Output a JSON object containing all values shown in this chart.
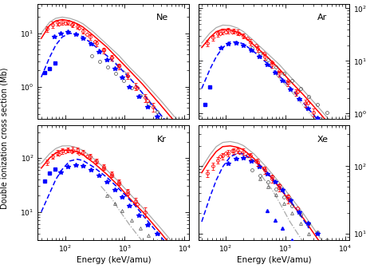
{
  "panels": [
    "Ne",
    "Ar",
    "Kr",
    "Xe"
  ],
  "background_color": "#ffffff",
  "xlim": [
    35,
    12000
  ],
  "ylims": {
    "Ne": [
      0.25,
      35
    ],
    "Ar": [
      0.8,
      120
    ],
    "Kr": [
      3,
      400
    ],
    "Xe": [
      8,
      400
    ]
  },
  "xlabel": "Energy (keV/amu)",
  "ylabel": "Double ionization cross section (Mb)",
  "curves": {
    "Ne": {
      "red_solid": {
        "x": [
          40,
          55,
          70,
          90,
          120,
          160,
          200,
          300,
          500,
          800,
          1200,
          2000,
          4000,
          8000,
          12000
        ],
        "y": [
          8,
          14,
          17,
          18,
          17,
          15,
          13,
          9,
          5.5,
          3.2,
          2.0,
          1.1,
          0.45,
          0.18,
          0.09
        ]
      },
      "gray_solid": {
        "x": [
          40,
          55,
          70,
          90,
          120,
          160,
          200,
          300,
          500,
          800,
          1200,
          2000,
          4000,
          8000,
          12000
        ],
        "y": [
          10,
          16,
          19,
          20,
          19,
          17,
          15,
          10.5,
          6.2,
          3.8,
          2.3,
          1.3,
          0.55,
          0.22,
          0.11
        ]
      },
      "blue_dashed": {
        "x": [
          40,
          55,
          70,
          90,
          120,
          160,
          200,
          300,
          500,
          700,
          1000,
          1500,
          2500,
          5000,
          8000
        ],
        "y": [
          1.5,
          3.5,
          6,
          8.5,
          10,
          9.5,
          8.5,
          6,
          3.8,
          2.7,
          1.8,
          1.1,
          0.55,
          0.22,
          0.12
        ]
      },
      "gray_dashdot": {
        "x": [
          700,
          1000,
          1500,
          2500,
          5000,
          8000,
          12000
        ],
        "y": [
          2.8,
          1.9,
          1.1,
          0.55,
          0.22,
          0.1,
          0.055
        ]
      }
    },
    "Ar": {
      "red_solid": {
        "x": [
          40,
          55,
          70,
          90,
          120,
          160,
          200,
          300,
          500,
          800,
          1200,
          2000,
          4000,
          8000,
          12000
        ],
        "y": [
          18,
          28,
          36,
          40,
          39,
          35,
          30,
          20,
          12,
          7,
          4.2,
          2.3,
          0.95,
          0.38,
          0.19
        ]
      },
      "gray_solid": {
        "x": [
          40,
          55,
          70,
          90,
          120,
          160,
          200,
          300,
          500,
          800,
          1200,
          2000,
          4000,
          8000,
          12000
        ],
        "y": [
          22,
          34,
          43,
          48,
          47,
          42,
          36,
          24,
          14,
          8.5,
          5.1,
          2.8,
          1.15,
          0.46,
          0.23
        ]
      },
      "blue_dashed": {
        "x": [
          40,
          55,
          70,
          90,
          120,
          160,
          200,
          300,
          500,
          700,
          1000,
          1500,
          2500,
          5000,
          8000
        ],
        "y": [
          3,
          7,
          12,
          18,
          23,
          23,
          21,
          15,
          9,
          6,
          4,
          2.4,
          1.2,
          0.48,
          0.25
        ]
      },
      "gray_dashdot": {
        "x": [
          700,
          1000,
          1500,
          2500,
          5000,
          8000,
          12000
        ],
        "y": [
          5.5,
          3.6,
          2.1,
          1.05,
          0.42,
          0.19,
          0.1
        ]
      }
    },
    "Kr": {
      "red_solid": {
        "x": [
          40,
          55,
          70,
          90,
          120,
          160,
          200,
          300,
          500,
          800,
          1200,
          2000,
          4000,
          8000
        ],
        "y": [
          65,
          100,
          125,
          140,
          140,
          130,
          115,
          82,
          50,
          30,
          18,
          10,
          4.1,
          1.6
        ]
      },
      "gray_solid": {
        "x": [
          40,
          55,
          70,
          90,
          120,
          160,
          200,
          300,
          500,
          800,
          1200,
          2000,
          4000,
          8000
        ],
        "y": [
          80,
          120,
          150,
          168,
          168,
          155,
          138,
          98,
          60,
          36,
          22,
          12,
          5,
          2
        ]
      },
      "blue_dashed": {
        "x": [
          40,
          55,
          70,
          90,
          120,
          160,
          200,
          300,
          500,
          700,
          1000,
          1500,
          2500,
          5000
        ],
        "y": [
          10,
          22,
          40,
          62,
          88,
          95,
          90,
          68,
          44,
          31,
          21,
          13,
          6.5,
          2.6
        ]
      },
      "gray_dashdot": {
        "x": [
          400,
          600,
          800,
          1200,
          2000,
          4000,
          8000
        ],
        "y": [
          30,
          18,
          11,
          5.8,
          2.8,
          1.1,
          0.45
        ]
      }
    },
    "Xe": {
      "red_solid": {
        "x": [
          40,
          55,
          70,
          90,
          120,
          160,
          200,
          300,
          500,
          800,
          1200,
          2000,
          4000,
          8000
        ],
        "y": [
          80,
          125,
          165,
          195,
          200,
          190,
          175,
          130,
          80,
          48,
          30,
          17,
          7,
          2.8
        ]
      },
      "gray_solid": {
        "x": [
          40,
          55,
          70,
          90,
          120,
          160,
          200,
          300,
          500,
          800,
          1200,
          2000,
          4000,
          8000
        ],
        "y": [
          95,
          148,
          195,
          225,
          232,
          220,
          202,
          152,
          94,
          57,
          36,
          20,
          8.2,
          3.3
        ]
      },
      "blue_dashed": {
        "x": [
          40,
          55,
          70,
          90,
          120,
          160,
          200,
          300,
          500,
          700,
          1000,
          1500,
          2500
        ],
        "y": [
          15,
          35,
          62,
          98,
          138,
          155,
          152,
          120,
          80,
          57,
          38,
          24,
          12
        ]
      },
      "gray_dashdot": {
        "x": [
          400,
          600,
          800,
          1200,
          2000,
          4000,
          8000
        ],
        "y": [
          72,
          45,
          29,
          15,
          7.5,
          3,
          1.2
        ]
      }
    }
  },
  "data_points": {
    "Ne": {
      "red_open_circles": {
        "x": [
          50,
          62,
          75,
          90,
          110,
          135,
          160,
          200,
          260,
          340,
          450,
          600,
          800,
          1100,
          1500,
          2200,
          3000
        ],
        "y": [
          12,
          14.5,
          16,
          16.5,
          16,
          15,
          13.5,
          11,
          8.5,
          6.5,
          4.8,
          3.5,
          2.4,
          1.6,
          1.0,
          0.62,
          0.42
        ],
        "yerr": [
          1.5,
          1.8,
          2,
          2,
          1.8,
          1.8,
          1.5,
          1.2,
          1,
          0.8,
          0.6,
          0.4,
          0.3,
          0.2,
          0.15,
          0.1,
          0.08
        ]
      },
      "red_open_diamonds": {
        "x": [
          80,
          100,
          130,
          170,
          230,
          320,
          440,
          600,
          800,
          1100,
          1600,
          2400
        ],
        "y": [
          15,
          15.5,
          14.5,
          12.5,
          9.5,
          7,
          5,
          3.5,
          2.5,
          1.6,
          0.95,
          0.55
        ]
      },
      "blue_filled_stars": {
        "x": [
          65,
          85,
          110,
          150,
          200,
          270,
          370,
          500,
          680,
          900,
          1200,
          1700,
          2400,
          3500
        ],
        "y": [
          8.5,
          10,
          10.5,
          9.5,
          8,
          6.2,
          4.5,
          3.2,
          2.2,
          1.5,
          1.0,
          0.65,
          0.42,
          0.28
        ]
      },
      "blue_filled_squares": {
        "x": [
          45,
          55,
          68
        ],
        "y": [
          1.8,
          2.2,
          2.8
        ]
      },
      "open_circles_black": {
        "x": [
          280,
          380,
          520,
          700,
          950,
          1300,
          1800,
          2500,
          3500,
          5000,
          7000
        ],
        "y": [
          3.8,
          3.0,
          2.3,
          1.75,
          1.3,
          0.95,
          0.68,
          0.48,
          0.34,
          0.24,
          0.17
        ]
      }
    },
    "Ar": {
      "red_open_circles": {
        "x": [
          50,
          62,
          75,
          90,
          110,
          135,
          160,
          200,
          260,
          340,
          450,
          600,
          800,
          1100,
          1500,
          2200,
          3000
        ],
        "y": [
          22,
          28,
          33,
          37,
          38,
          37,
          35,
          30,
          23,
          17,
          12,
          8.5,
          5.8,
          3.8,
          2.5,
          1.6,
          1.05
        ],
        "yerr": [
          3,
          3.5,
          4,
          4.5,
          4.5,
          4,
          4,
          3.5,
          3,
          2,
          1.5,
          1,
          0.7,
          0.5,
          0.35,
          0.25,
          0.18
        ]
      },
      "red_open_diamonds": {
        "x": [
          80,
          100,
          130,
          170,
          230,
          320,
          440,
          600,
          800,
          1100,
          1600,
          2400
        ],
        "y": [
          33,
          36,
          36,
          33,
          27,
          20,
          14,
          9.5,
          6.5,
          4.2,
          2.6,
          1.6
        ]
      },
      "blue_filled_stars": {
        "x": [
          85,
          110,
          150,
          200,
          270,
          370,
          500,
          680,
          900,
          1200,
          1700,
          2400,
          3500,
          5000,
          7000
        ],
        "y": [
          18,
          21,
          22,
          20,
          16,
          12,
          8.5,
          6,
          4.2,
          2.9,
          1.9,
          1.25,
          0.82,
          0.54,
          0.36
        ]
      },
      "blue_filled_squares": {
        "x": [
          45,
          55
        ],
        "y": [
          1.5,
          3.2
        ]
      },
      "open_circles_black": {
        "x": [
          280,
          380,
          520,
          700,
          950,
          1300,
          1800,
          2500,
          3500,
          5000,
          7000
        ],
        "y": [
          18,
          14,
          10.5,
          7.8,
          5.8,
          4.2,
          3.0,
          2.1,
          1.5,
          1.05,
          0.75
        ]
      }
    },
    "Kr": {
      "red_open_circles": {
        "x": [
          50,
          62,
          75,
          90,
          110,
          135,
          160,
          200,
          260,
          340,
          450,
          600,
          800,
          1100,
          1500,
          2200
        ],
        "y": [
          85,
          108,
          125,
          136,
          142,
          143,
          140,
          128,
          108,
          88,
          68,
          50,
          36,
          24,
          16,
          10
        ],
        "yerr": [
          10,
          12,
          14,
          15,
          16,
          16,
          16,
          14,
          12,
          10,
          8,
          6,
          4.5,
          3,
          2.5,
          2
        ]
      },
      "red_open_diamonds": {
        "x": [
          80,
          100,
          130,
          170,
          230,
          320,
          440,
          600,
          800,
          1100,
          1600
        ],
        "y": [
          120,
          130,
          132,
          125,
          108,
          85,
          65,
          48,
          34,
          22,
          14
        ]
      },
      "blue_filled_stars": {
        "x": [
          85,
          110,
          150,
          200,
          270,
          370,
          500,
          680,
          900,
          1200,
          1700,
          2400,
          3500
        ],
        "y": [
          55,
          68,
          75,
          72,
          60,
          48,
          36,
          26,
          19,
          13,
          8.5,
          5.8,
          4
        ]
      },
      "blue_filled_squares": {
        "x": [
          45,
          55,
          68
        ],
        "y": [
          38,
          52,
          62
        ]
      },
      "open_triangles_black": {
        "x": [
          500,
          680,
          900,
          1300,
          1800,
          2500,
          3500,
          5000,
          7000
        ],
        "y": [
          20,
          14.5,
          10.5,
          7,
          5,
          3.7,
          2.9,
          2.4,
          2.1
        ]
      }
    },
    "Xe": {
      "red_open_circles": {
        "x": [
          50,
          62,
          75,
          90,
          110,
          135,
          160,
          200,
          260,
          340,
          450,
          600,
          800,
          1100
        ],
        "y": [
          78,
          100,
          122,
          142,
          158,
          168,
          172,
          165,
          142,
          115,
          88,
          65,
          48,
          33
        ],
        "yerr": [
          10,
          12,
          14,
          16,
          18,
          18,
          18,
          18,
          16,
          14,
          11,
          8,
          6,
          5
        ]
      },
      "red_open_diamonds": {
        "x": [
          80,
          100,
          130,
          170,
          230,
          320,
          440,
          600,
          800,
          1100,
          1600
        ],
        "y": [
          138,
          158,
          168,
          162,
          145,
          118,
          92,
          70,
          52,
          36,
          24
        ]
      },
      "blue_filled_stars": {
        "x": [
          110,
          150,
          200,
          270,
          370,
          500,
          680,
          900,
          1200,
          1700,
          2400,
          3500
        ],
        "y": [
          108,
          128,
          132,
          120,
          98,
          76,
          58,
          44,
          31,
          21,
          14,
          10
        ]
      },
      "blue_filled_triangles": {
        "x": [
          500,
          680,
          900,
          1300,
          1800,
          2500
        ],
        "y": [
          22,
          16,
          12,
          8,
          5.8,
          4.2
        ]
      },
      "open_circles_black": {
        "x": [
          280,
          380,
          520,
          700,
          950,
          1300,
          1800,
          2500,
          3500,
          5000,
          7000
        ],
        "y": [
          88,
          72,
          58,
          46,
          35,
          26,
          19,
          14,
          10.5,
          8,
          6.2
        ]
      },
      "open_triangles_black": {
        "x": [
          380,
          520,
          700,
          950,
          1300,
          1800,
          2500,
          3500,
          5000,
          7000
        ],
        "y": [
          65,
          50,
          38,
          28,
          20,
          14,
          10,
          7.5,
          5.8,
          4.5
        ]
      }
    }
  }
}
